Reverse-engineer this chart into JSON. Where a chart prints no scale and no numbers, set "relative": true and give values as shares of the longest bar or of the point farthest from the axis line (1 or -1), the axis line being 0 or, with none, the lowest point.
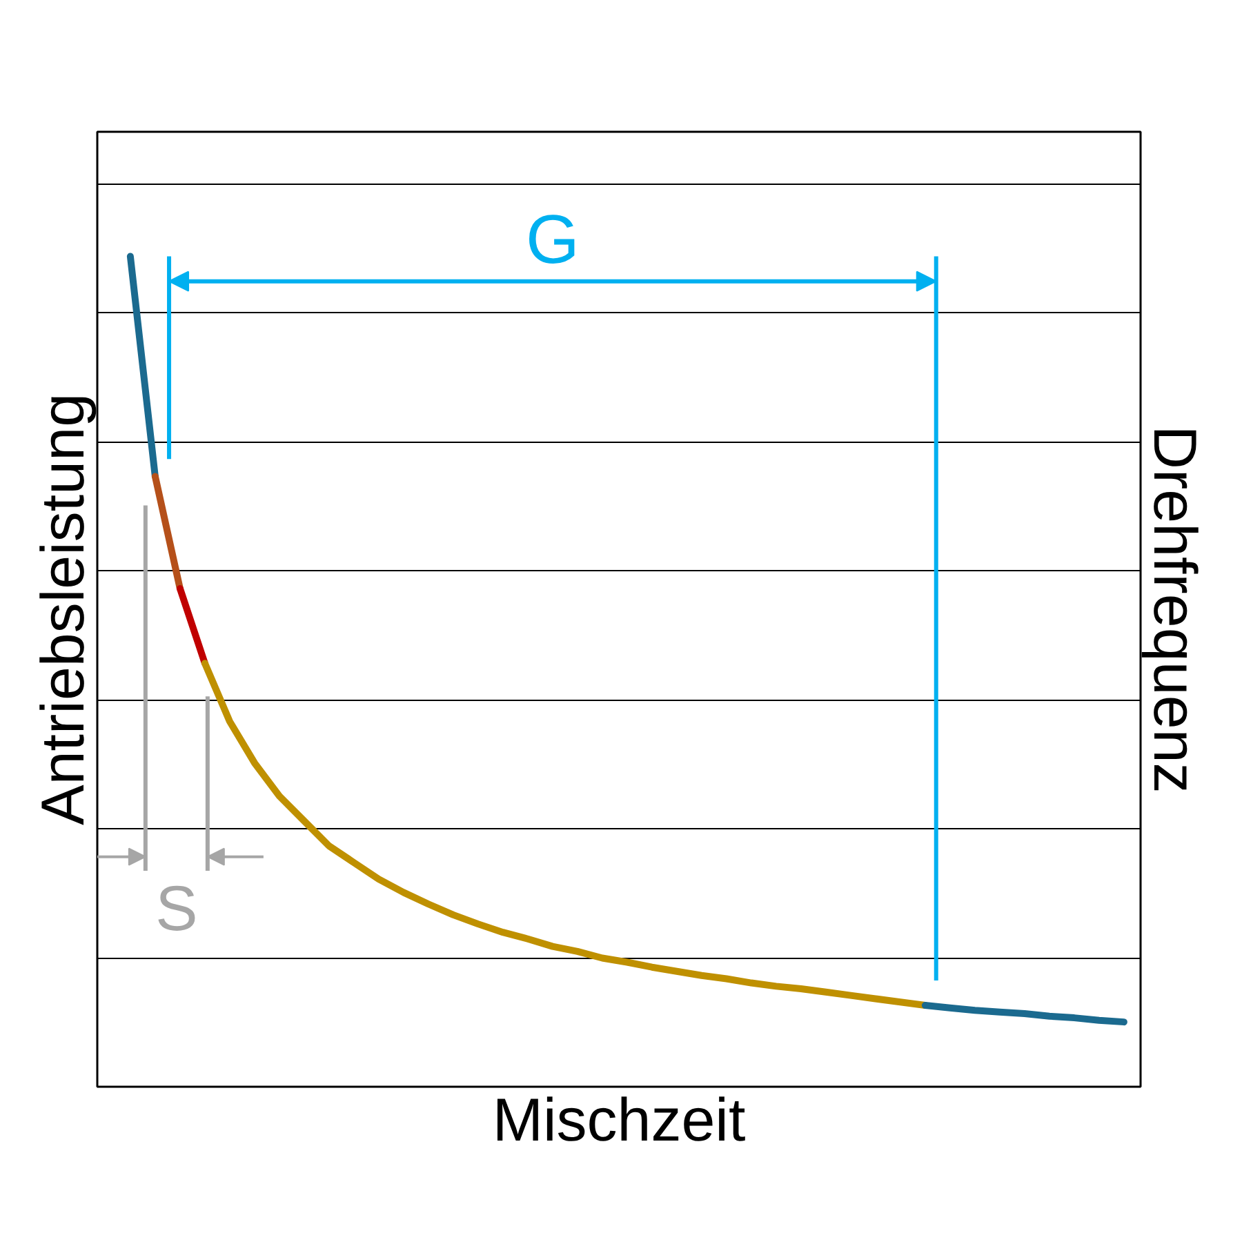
{
  "chart_data": {
    "type": "line",
    "relative": true,
    "xlabel": "Mischzeit",
    "ylabel": "Antriebsleistung",
    "y2label": "Drehfrequenz",
    "grid": "y",
    "line_style": "solid",
    "marker": "none",
    "categories": [
      null,
      null,
      null,
      null,
      null,
      null,
      null,
      null,
      null,
      null,
      null,
      null,
      null,
      null,
      null,
      null,
      null,
      null,
      null,
      null,
      null,
      null,
      null,
      null,
      null,
      null,
      null,
      null,
      null,
      null,
      null,
      null,
      null,
      null,
      null,
      null,
      null,
      null,
      null,
      null,
      null
    ],
    "series": [
      {
        "color": "#1b6a8f",
        "values": [
          1.0,
          0.735,
          null,
          null,
          null,
          null,
          null,
          null,
          null,
          null,
          null,
          null,
          null,
          null,
          null,
          null,
          null,
          null,
          null,
          null,
          null,
          null,
          null,
          null,
          null,
          null,
          null,
          null,
          null,
          null,
          null,
          null,
          null,
          null,
          null,
          null,
          null,
          null,
          null,
          null,
          null
        ]
      },
      {
        "color": "#b5501a",
        "values": [
          null,
          0.735,
          0.6,
          null,
          null,
          null,
          null,
          null,
          null,
          null,
          null,
          null,
          null,
          null,
          null,
          null,
          null,
          null,
          null,
          null,
          null,
          null,
          null,
          null,
          null,
          null,
          null,
          null,
          null,
          null,
          null,
          null,
          null,
          null,
          null,
          null,
          null,
          null,
          null,
          null,
          null
        ]
      },
      {
        "color": "#c00000",
        "values": [
          null,
          null,
          0.6,
          0.51,
          null,
          null,
          null,
          null,
          null,
          null,
          null,
          null,
          null,
          null,
          null,
          null,
          null,
          null,
          null,
          null,
          null,
          null,
          null,
          null,
          null,
          null,
          null,
          null,
          null,
          null,
          null,
          null,
          null,
          null,
          null,
          null,
          null,
          null,
          null,
          null,
          null
        ]
      },
      {
        "color": "#bf9000",
        "values": [
          null,
          null,
          null,
          0.51,
          0.44,
          0.39,
          0.35,
          0.32,
          0.29,
          0.27,
          0.25,
          0.234,
          0.22,
          0.207,
          0.196,
          0.186,
          0.178,
          0.169,
          0.163,
          0.155,
          0.15,
          0.144,
          0.139,
          0.134,
          0.13,
          0.125,
          0.121,
          0.118,
          0.114,
          0.11,
          0.106,
          0.102,
          0.098,
          null,
          null,
          null,
          null,
          null,
          null,
          null,
          null
        ]
      },
      {
        "color": "#1b6a8f",
        "values": [
          null,
          null,
          null,
          null,
          null,
          null,
          null,
          null,
          null,
          null,
          null,
          null,
          null,
          null,
          null,
          null,
          null,
          null,
          null,
          null,
          null,
          null,
          null,
          null,
          null,
          null,
          null,
          null,
          null,
          null,
          null,
          null,
          0.098,
          0.095,
          0.092,
          0.09,
          0.088,
          0.085,
          0.083,
          0.08,
          0.078
        ]
      }
    ],
    "annotations": [
      "G",
      "S"
    ]
  }
}
